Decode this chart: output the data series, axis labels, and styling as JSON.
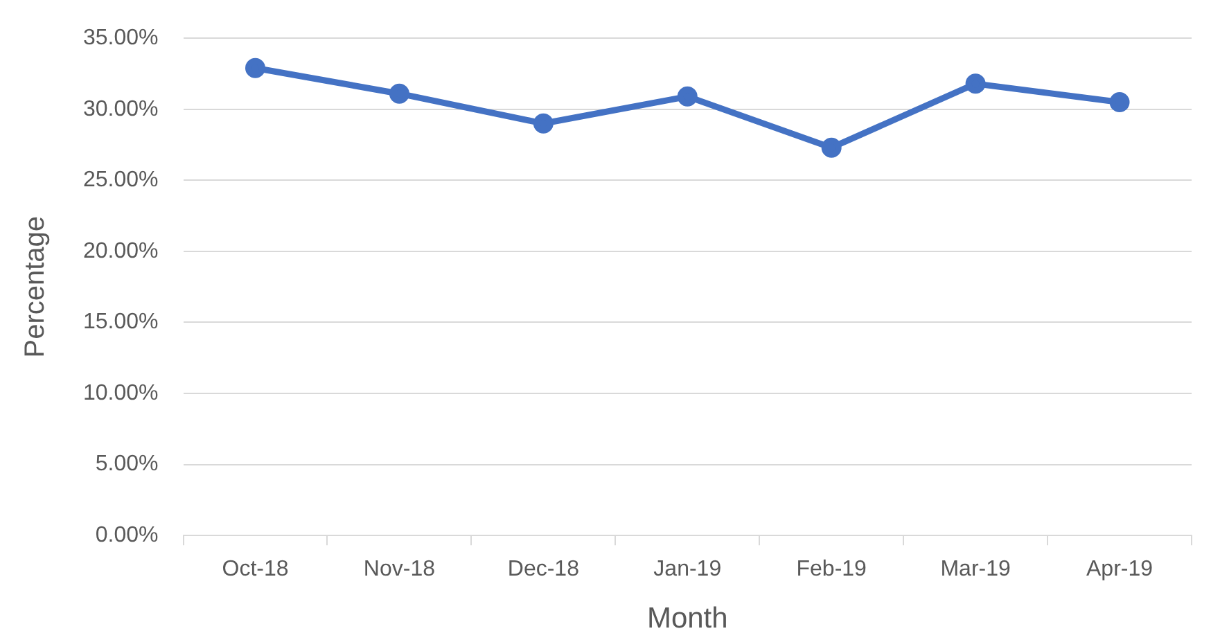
{
  "chart_data": {
    "type": "line",
    "xlabel": "Month",
    "ylabel": "Percentage",
    "categories": [
      "Oct-18",
      "Nov-18",
      "Dec-18",
      "Jan-19",
      "Feb-19",
      "Mar-19",
      "Apr-19"
    ],
    "series": [
      {
        "color": "#4472c4",
        "values": [
          32.9,
          31.1,
          29.0,
          30.9,
          27.3,
          31.8,
          30.5
        ]
      }
    ],
    "ylim": [
      0,
      35
    ],
    "yticks": [
      {
        "value": 0,
        "label": "0.00%"
      },
      {
        "value": 5,
        "label": "5.00%"
      },
      {
        "value": 10,
        "label": "10.00%"
      },
      {
        "value": 15,
        "label": "15.00%"
      },
      {
        "value": 20,
        "label": "20.00%"
      },
      {
        "value": 25,
        "label": "25.00%"
      },
      {
        "value": 30,
        "label": "30.00%"
      },
      {
        "value": 35,
        "label": "35.00%"
      }
    ],
    "grid": "y",
    "marker": "circle",
    "line_style": "solid"
  }
}
